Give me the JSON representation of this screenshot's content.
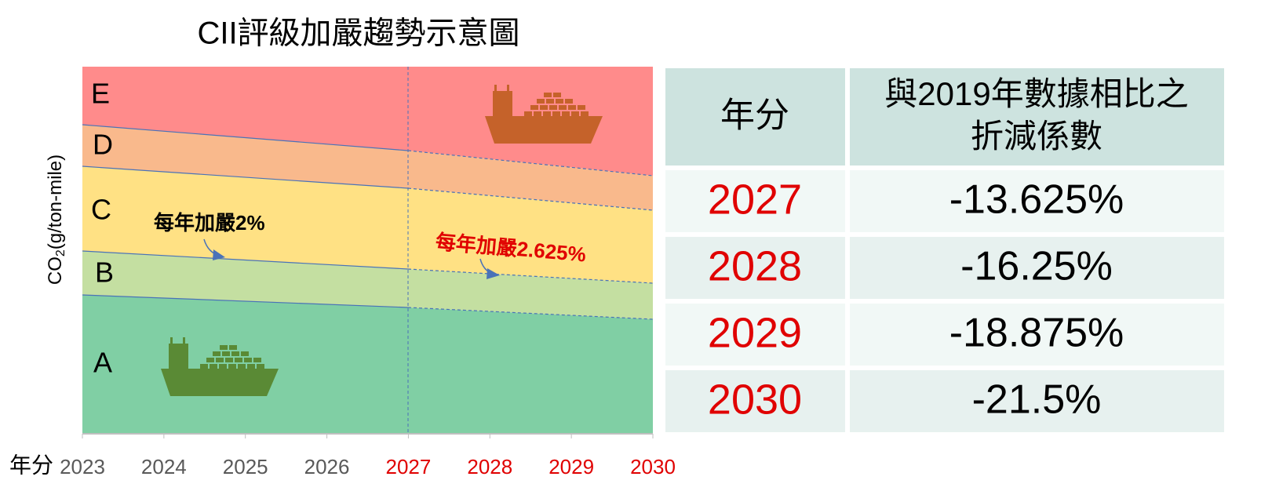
{
  "title": "CII評級加嚴趨勢示意圖",
  "y_axis_label": {
    "main": "CO",
    "sub": "2",
    "rest": "(g/ton-mile)"
  },
  "x_axis_label": "年分",
  "years": [
    {
      "label": "2023",
      "color": "#595959"
    },
    {
      "label": "2024",
      "color": "#595959"
    },
    {
      "label": "2025",
      "color": "#595959"
    },
    {
      "label": "2026",
      "color": "#595959"
    },
    {
      "label": "2027",
      "color": "#e00000"
    },
    {
      "label": "2028",
      "color": "#e00000"
    },
    {
      "label": "2029",
      "color": "#e00000"
    },
    {
      "label": "2030",
      "color": "#e00000"
    }
  ],
  "bands": [
    {
      "label": "E",
      "color": "#ff8b8b"
    },
    {
      "label": "D",
      "color": "#f9b98c"
    },
    {
      "label": "C",
      "color": "#ffe184"
    },
    {
      "label": "B",
      "color": "#c4dfa1"
    },
    {
      "label": "A",
      "color": "#80cfa4"
    }
  ],
  "annotations": [
    {
      "text": "每年加嚴2%",
      "color": "#000000"
    },
    {
      "text": "每年加嚴2.625%",
      "color": "#e00000"
    }
  ],
  "table": {
    "header": [
      "年分",
      [
        "與2019年數據相比之",
        "折減係數"
      ]
    ],
    "rows": [
      [
        "2027",
        "-13.625%"
      ],
      [
        "2028",
        "-16.25%"
      ],
      [
        "2029",
        "-18.875%"
      ],
      [
        "2030",
        "-21.5%"
      ]
    ]
  }
}
